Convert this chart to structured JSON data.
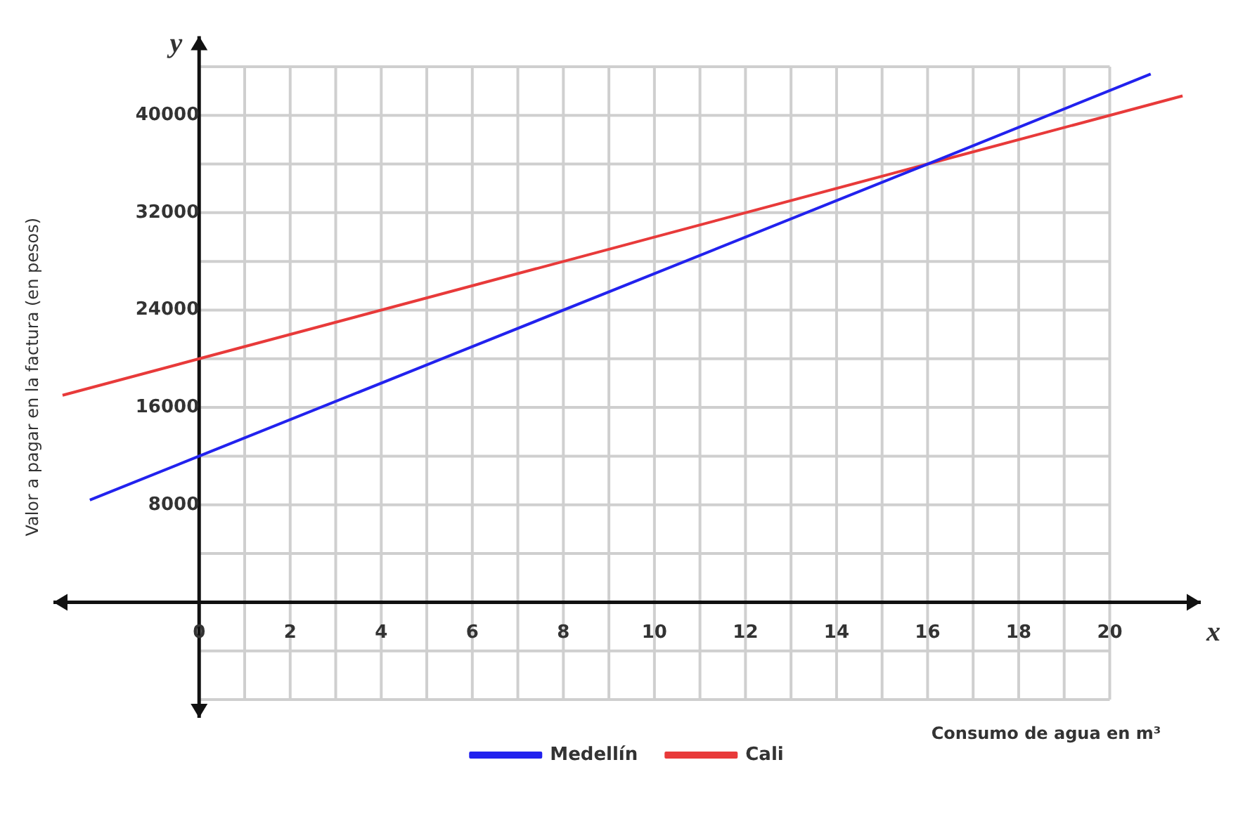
{
  "chart_data": {
    "type": "line",
    "xlabel": "Consumo de agua en m³",
    "ylabel": "Valor a pagar en la factura (en pesos)",
    "annotations": [
      "y",
      "x"
    ],
    "series": [
      {
        "name": "Medellín",
        "color": "#2222ee",
        "x": [
          -2.4,
          0,
          16,
          20.9
        ],
        "values": [
          8400,
          12000,
          36000,
          43400
        ]
      },
      {
        "name": "Cali",
        "color": "#e83a3a",
        "x": [
          -3,
          0,
          16,
          21.6
        ],
        "values": [
          17000,
          20000,
          36000,
          41600
        ]
      }
    ],
    "xlim": [
      -3.2,
      22
    ],
    "ylim": [
      -9500,
      46500
    ],
    "xticks": [
      0,
      {
        "value": 1,
        "label": null
      },
      2,
      {
        "value": 3,
        "label": null
      },
      4,
      {
        "value": 5,
        "label": null
      },
      6,
      {
        "value": 7,
        "label": null
      },
      8,
      {
        "value": 9,
        "label": null
      },
      10,
      {
        "value": 11,
        "label": null
      },
      12,
      {
        "value": 13,
        "label": null
      },
      14,
      {
        "value": 15,
        "label": null
      },
      16,
      {
        "value": 17,
        "label": null
      },
      18,
      {
        "value": 19,
        "label": null
      },
      20
    ],
    "yticks": [
      {
        "value": -8000,
        "label": null
      },
      {
        "value": -4000,
        "label": null
      },
      {
        "value": 0,
        "label": null
      },
      {
        "value": 4000,
        "label": null
      },
      8000,
      {
        "value": 12000,
        "label": null
      },
      16000,
      {
        "value": 20000,
        "label": null
      },
      24000,
      {
        "value": 28000,
        "label": null
      },
      32000,
      {
        "value": 36000,
        "label": null
      },
      40000,
      {
        "value": 44000,
        "label": null
      }
    ],
    "grid": true,
    "legend": "bottom",
    "marker": "none",
    "line_style": "solid"
  }
}
